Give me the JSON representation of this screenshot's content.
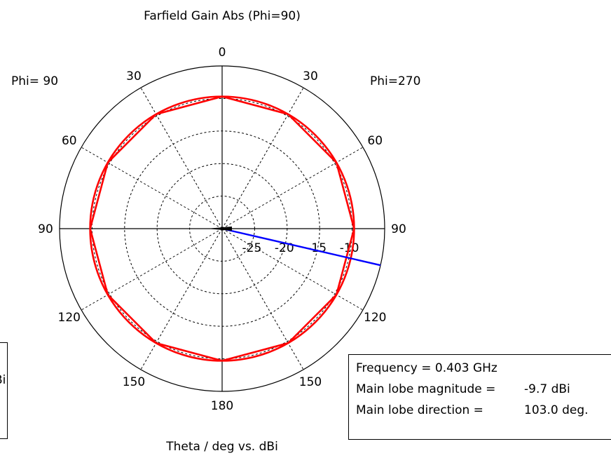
{
  "chart_data": {
    "type": "polar",
    "title": "Farfield Gain Abs (Phi=90)",
    "xlabel": "Theta / deg vs. dBi",
    "left_half_label": "Phi= 90",
    "right_half_label": "Phi=270",
    "angle_labels": [
      "0",
      "30",
      "60",
      "90",
      "120",
      "150",
      "180",
      "150",
      "120",
      "90",
      "60",
      "30"
    ],
    "radial_tick_labels": [
      "-25",
      "-20",
      "-15",
      "-10"
    ],
    "radial_ticks": [
      -25,
      -20,
      -15,
      -10
    ],
    "radial_range": [
      -30,
      -5
    ],
    "grid": true,
    "series": [
      {
        "color": "#ff0000",
        "theta": [
          0,
          30,
          60,
          90,
          120,
          150,
          180,
          210,
          240,
          270,
          300,
          330,
          360
        ],
        "values": [
          -9.7,
          -9.7,
          -9.7,
          -9.7,
          -9.7,
          -9.7,
          -9.7,
          -9.7,
          -9.7,
          -9.7,
          -9.7,
          -9.7,
          -9.7
        ]
      }
    ],
    "main_lobe_marker": {
      "color": "#0000ff",
      "direction_deg": 103.0
    }
  },
  "info": {
    "frequency": "Frequency = 0.403 GHz",
    "magnitude_label": "Main lobe magnitude =",
    "magnitude_value": "-9.7 dBi",
    "direction_label": "Main lobe direction =",
    "direction_value": "103.0 deg."
  },
  "left_box_fragments": [
    "Bi",
    "."
  ]
}
